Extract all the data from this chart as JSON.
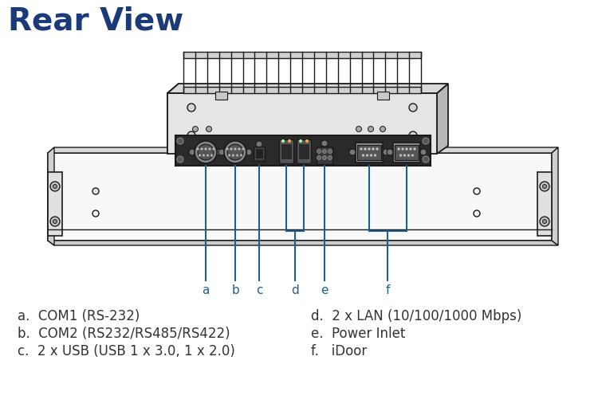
{
  "title": "Rear View",
  "title_color": "#1a3a7a",
  "title_fontsize": 28,
  "bg_color": "#ffffff",
  "line_color": "#1a5a8a",
  "dc": "#1a1a1a",
  "labels_left": [
    "a.  COM1 (RS-232)",
    "b.  COM2 (RS232/RS485/RS422)",
    "c.  2 x USB (USB 1 x 3.0, 1 x 2.0)"
  ],
  "labels_right": [
    "d.  2 x LAN (10/100/1000 Mbps)",
    "e.  Power Inlet",
    "f.   iDoor"
  ],
  "ann_color": "#1f5f8b"
}
